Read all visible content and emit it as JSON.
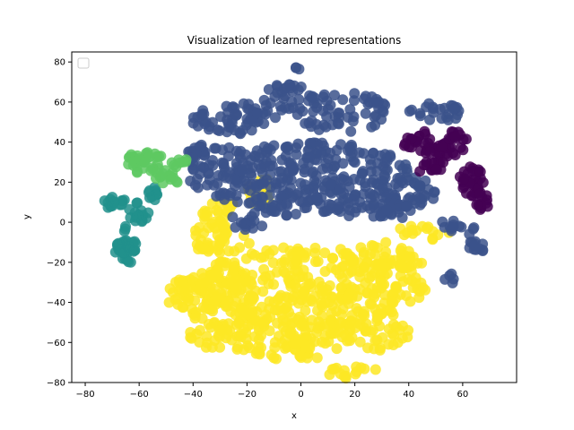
{
  "chart_data": {
    "type": "scatter",
    "title": "Visualization of learned representations",
    "xlabel": "x",
    "ylabel": "y",
    "xlim": [
      -85,
      80
    ],
    "ylim": [
      -80,
      85
    ],
    "xticks": [
      -80,
      -60,
      -40,
      -20,
      0,
      20,
      40,
      60
    ],
    "yticks": [
      -80,
      -60,
      -40,
      -20,
      0,
      20,
      40,
      60,
      80
    ],
    "xtick_labels": [
      "−80",
      "−60",
      "−40",
      "−20",
      "0",
      "20",
      "40",
      "60"
    ],
    "ytick_labels": [
      "−80",
      "−60",
      "−40",
      "−20",
      "0",
      "20",
      "40",
      "60",
      "80"
    ],
    "grid": false,
    "legend": {
      "placement": "top-left",
      "entries": []
    },
    "point_alpha": 0.85,
    "series": [
      {
        "color": "#fde725",
        "clusters": [
          {
            "center": [
              5,
              -32
            ],
            "radius": [
              45,
              20
            ],
            "n": 320
          },
          {
            "center": [
              -30,
              -38
            ],
            "radius": [
              15,
              14
            ],
            "n": 70
          },
          {
            "center": [
              -20,
              -57
            ],
            "radius": [
              22,
              8
            ],
            "n": 70
          },
          {
            "center": [
              18,
              -55
            ],
            "radius": [
              25,
              10
            ],
            "n": 80
          },
          {
            "center": [
              30,
              -20
            ],
            "radius": [
              15,
              10
            ],
            "n": 60
          },
          {
            "center": [
              -30,
              -8
            ],
            "radius": [
              12,
              8
            ],
            "n": 40
          },
          {
            "center": [
              -5,
              -65
            ],
            "radius": [
              14,
              5
            ],
            "n": 30
          },
          {
            "center": [
              -45,
              -35
            ],
            "radius": [
              5,
              8
            ],
            "n": 20
          },
          {
            "center": [
              -30,
              5
            ],
            "radius": [
              8,
              5
            ],
            "n": 20
          },
          {
            "center": [
              -15,
              15
            ],
            "radius": [
              5,
              8
            ],
            "n": 15
          },
          {
            "center": [
              45,
              -5
            ],
            "radius": [
              10,
              4
            ],
            "n": 15
          },
          {
            "center": [
              20,
              -75
            ],
            "radius": [
              10,
              3
            ],
            "n": 15
          }
        ]
      },
      {
        "color": "#3b528b",
        "clusters": [
          {
            "center": [
              5,
              25
            ],
            "radius": [
              35,
              15
            ],
            "n": 220
          },
          {
            "center": [
              -30,
              25
            ],
            "radius": [
              12,
              14
            ],
            "n": 60
          },
          {
            "center": [
              -25,
              52
            ],
            "radius": [
              16,
              8
            ],
            "n": 60
          },
          {
            "center": [
              15,
              55
            ],
            "radius": [
              18,
              10
            ],
            "n": 60
          },
          {
            "center": [
              -5,
              62
            ],
            "radius": [
              10,
              7
            ],
            "n": 30
          },
          {
            "center": [
              40,
              15
            ],
            "radius": [
              10,
              8
            ],
            "n": 40
          },
          {
            "center": [
              50,
              55
            ],
            "radius": [
              10,
              5
            ],
            "n": 25
          },
          {
            "center": [
              25,
              8
            ],
            "radius": [
              15,
              6
            ],
            "n": 40
          },
          {
            "center": [
              -5,
              8
            ],
            "radius": [
              20,
              6
            ],
            "n": 50
          },
          {
            "center": [
              -40,
              35
            ],
            "radius": [
              4,
              6
            ],
            "n": 15
          },
          {
            "center": [
              65,
              -10
            ],
            "radius": [
              3,
              8
            ],
            "n": 15
          },
          {
            "center": [
              55,
              -2
            ],
            "radius": [
              5,
              3
            ],
            "n": 10
          },
          {
            "center": [
              55,
              -28
            ],
            "radius": [
              2,
              3
            ],
            "n": 5
          },
          {
            "center": [
              35,
              5
            ],
            "radius": [
              8,
              4
            ],
            "n": 15
          },
          {
            "center": [
              -1,
              77
            ],
            "radius": [
              1,
              1
            ],
            "n": 3
          },
          {
            "center": [
              -20,
              0
            ],
            "radius": [
              8,
              4
            ],
            "n": 15
          }
        ]
      },
      {
        "color": "#440154",
        "clusters": [
          {
            "center": [
              52,
              40
            ],
            "radius": [
              10,
              8
            ],
            "n": 45
          },
          {
            "center": [
              63,
              20
            ],
            "radius": [
              5,
              8
            ],
            "n": 30
          },
          {
            "center": [
              68,
              10
            ],
            "radius": [
              3,
              5
            ],
            "n": 12
          },
          {
            "center": [
              48,
              28
            ],
            "radius": [
              6,
              4
            ],
            "n": 15
          },
          {
            "center": [
              40,
              40
            ],
            "radius": [
              4,
              3
            ],
            "n": 8
          }
        ]
      },
      {
        "color": "#21918c",
        "clusters": [
          {
            "center": [
              -65,
              -12
            ],
            "radius": [
              4,
              10
            ],
            "n": 35
          },
          {
            "center": [
              -70,
              10
            ],
            "radius": [
              5,
              3
            ],
            "n": 15
          },
          {
            "center": [
              -60,
              5
            ],
            "radius": [
              4,
              5
            ],
            "n": 15
          },
          {
            "center": [
              -55,
              15
            ],
            "radius": [
              4,
              4
            ],
            "n": 10
          }
        ]
      },
      {
        "color": "#5ec962",
        "clusters": [
          {
            "center": [
              -58,
              30
            ],
            "radius": [
              7,
              6
            ],
            "n": 35
          },
          {
            "center": [
              -50,
              22
            ],
            "radius": [
              5,
              4
            ],
            "n": 15
          },
          {
            "center": [
              -45,
              30
            ],
            "radius": [
              3,
              3
            ],
            "n": 8
          }
        ]
      }
    ]
  }
}
